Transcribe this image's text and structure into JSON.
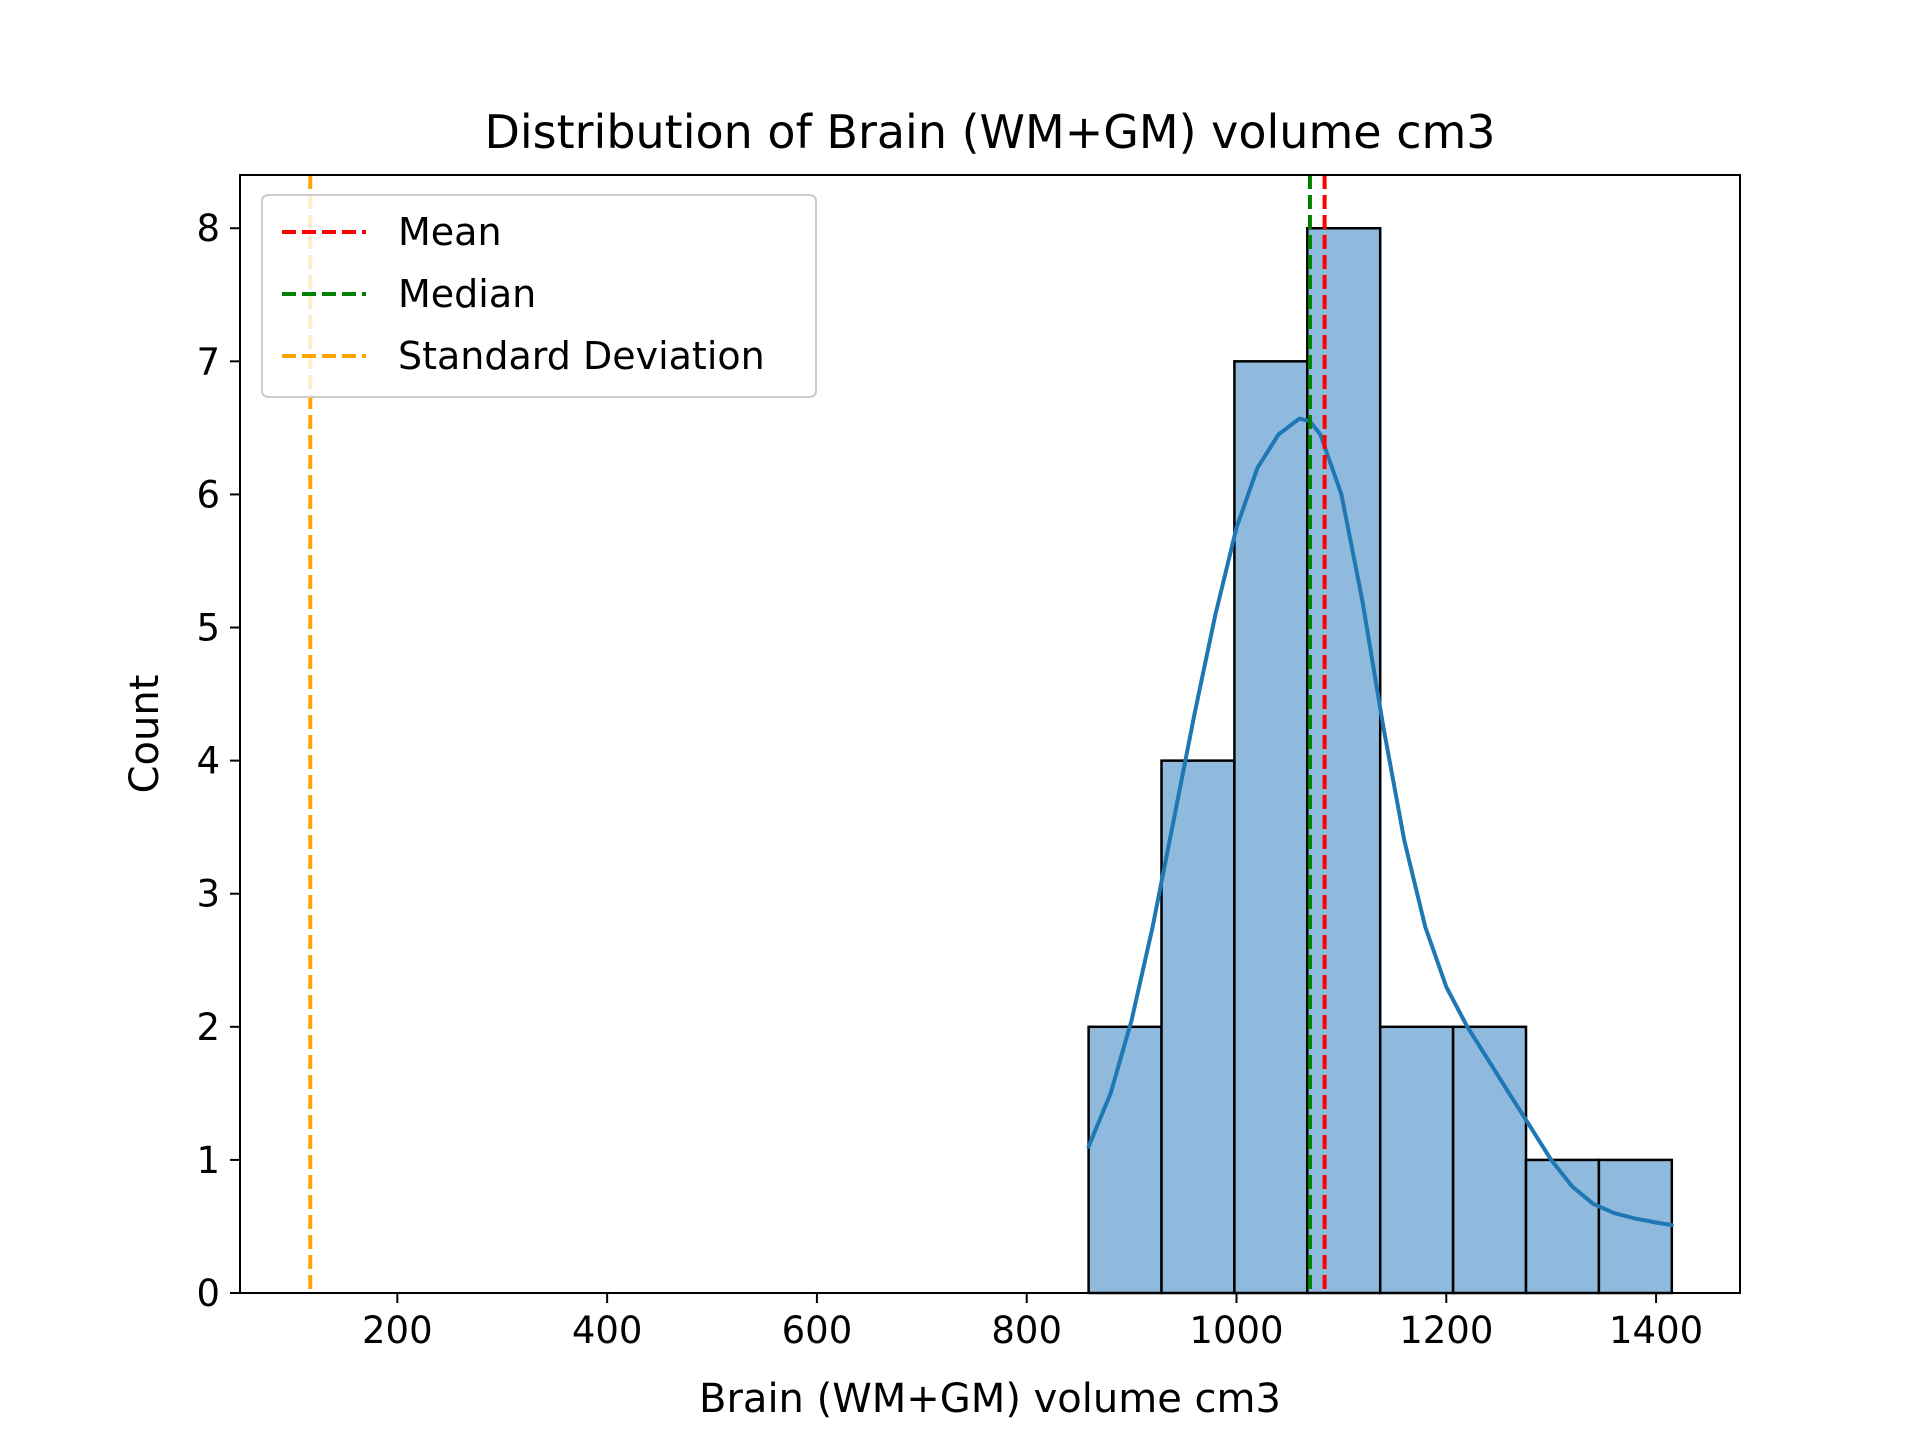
{
  "chart_data": {
    "type": "bar",
    "title": "Distribution of Brain (WM+GM) volume cm3",
    "xlabel": "Brain (WM+GM) volume cm3",
    "ylabel": "Count",
    "xlim": [
      50,
      1480
    ],
    "ylim": [
      0,
      8.4
    ],
    "xticks": [
      200,
      400,
      600,
      800,
      1000,
      1200,
      1400
    ],
    "yticks": [
      0,
      1,
      2,
      3,
      4,
      5,
      6,
      7,
      8
    ],
    "bin_edges": [
      859,
      928.5,
      998,
      1067.5,
      1137,
      1206.5,
      1276,
      1345.5,
      1415
    ],
    "counts": [
      2,
      4,
      7,
      8,
      2,
      2,
      1,
      1
    ],
    "kde_curve": {
      "x": [
        859,
        880,
        900,
        920,
        940,
        960,
        980,
        1000,
        1020,
        1040,
        1060,
        1070,
        1080,
        1100,
        1120,
        1140,
        1160,
        1180,
        1200,
        1220,
        1240,
        1260,
        1280,
        1300,
        1320,
        1340,
        1360,
        1380,
        1400,
        1415
      ],
      "y": [
        1.1,
        1.5,
        2.05,
        2.75,
        3.55,
        4.35,
        5.1,
        5.75,
        6.2,
        6.45,
        6.57,
        6.55,
        6.45,
        6.0,
        5.2,
        4.25,
        3.4,
        2.75,
        2.3,
        2.0,
        1.75,
        1.5,
        1.25,
        1.0,
        0.8,
        0.67,
        0.6,
        0.56,
        0.53,
        0.51
      ]
    },
    "reference_lines": [
      {
        "name": "Mean",
        "x": 1084,
        "color": "#ff0000"
      },
      {
        "name": "Median",
        "x": 1070,
        "color": "#008000"
      },
      {
        "name": "Standard Deviation",
        "x": 117,
        "color": "#ffa500"
      }
    ],
    "colors": {
      "bar_fill": "#8fbadd",
      "bar_edge": "#000000",
      "kde_line": "#1f77b4"
    },
    "legend_position": "top-left",
    "grid": false
  }
}
